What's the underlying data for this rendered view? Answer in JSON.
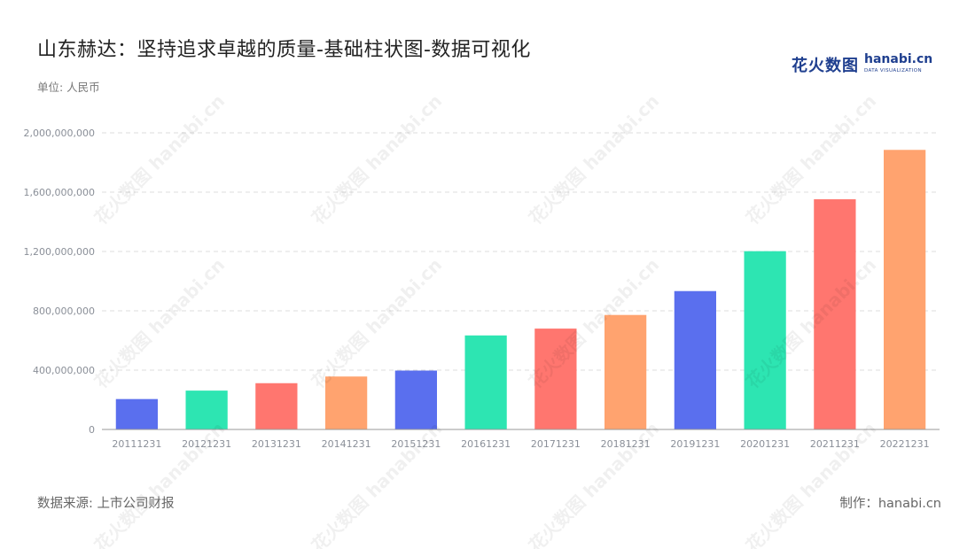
{
  "header": {
    "title": "山东赫达：坚持追求卓越的质量-基础柱状图-数据可视化",
    "unit": "单位: 人民币"
  },
  "logo": {
    "cn": "花火数图",
    "en": "hanabi.cn",
    "sub": "DATA VISUALIZATION"
  },
  "footer": {
    "source": "数据来源: 上市公司财报",
    "credit": "制作：hanabi.cn"
  },
  "watermark": "花火数图 hanabi.cn",
  "colors": {
    "blue": "#5a6fee",
    "green": "#2de5b2",
    "red": "#ff766f",
    "orange": "#ffa36f",
    "grid": "#dddddd",
    "axis": "#999999"
  },
  "chart_data": {
    "type": "bar",
    "categories": [
      "20111231",
      "20121231",
      "20131231",
      "20141231",
      "20151231",
      "20161231",
      "20171231",
      "20181231",
      "20191231",
      "20201231",
      "20211231",
      "20221231"
    ],
    "values": [
      205000000,
      262000000,
      312000000,
      357000000,
      397000000,
      634000000,
      680000000,
      772000000,
      933000000,
      1202000000,
      1552000000,
      1885000000
    ],
    "bar_colors": [
      "#5a6fee",
      "#2de5b2",
      "#ff766f",
      "#ffa36f",
      "#5a6fee",
      "#2de5b2",
      "#ff766f",
      "#ffa36f",
      "#5a6fee",
      "#2de5b2",
      "#ff766f",
      "#ffa36f"
    ],
    "yticks": [
      0,
      400000000,
      800000000,
      1200000000,
      1600000000,
      2000000000
    ],
    "ytick_labels": [
      "0",
      "400,000,000",
      "800,000,000",
      "1,200,000,000",
      "1,600,000,000",
      "2,000,000,000"
    ],
    "ylim": [
      0,
      2000000000
    ],
    "grid": true,
    "legend": "none"
  }
}
